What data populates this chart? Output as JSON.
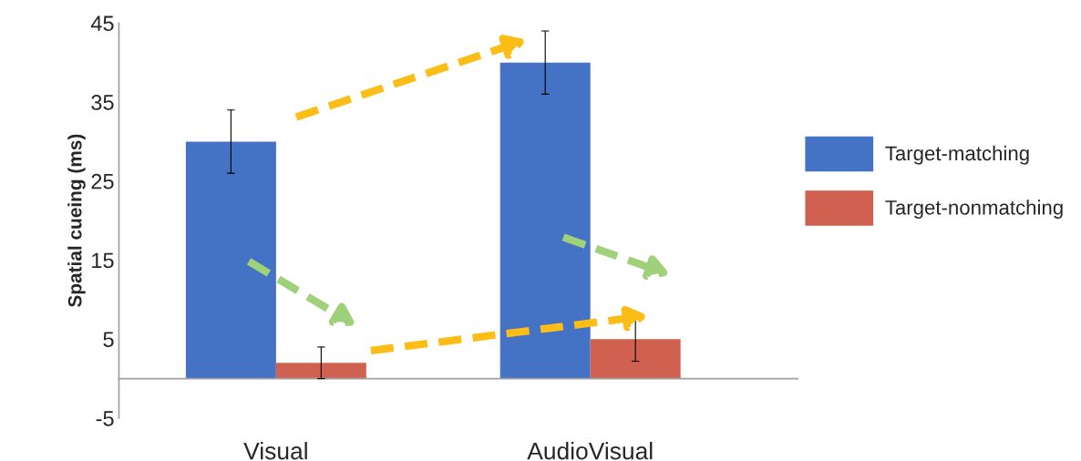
{
  "chart_data": {
    "type": "bar",
    "ylabel": "Spatial cueing (ms)",
    "categories": [
      "Visual",
      "AudioVisual"
    ],
    "series": [
      {
        "name": "Target-matching",
        "color": "#4472c4",
        "values": [
          30,
          40
        ],
        "errors": [
          4,
          4
        ]
      },
      {
        "name": "Target-nonmatching",
        "color": "#d0604f",
        "values": [
          2,
          5
        ],
        "errors": [
          2,
          2.8
        ]
      }
    ],
    "ylim": [
      -5,
      45
    ],
    "yticks": [
      -5,
      5,
      15,
      25,
      35,
      45
    ],
    "legend": "right",
    "grid": false
  }
}
